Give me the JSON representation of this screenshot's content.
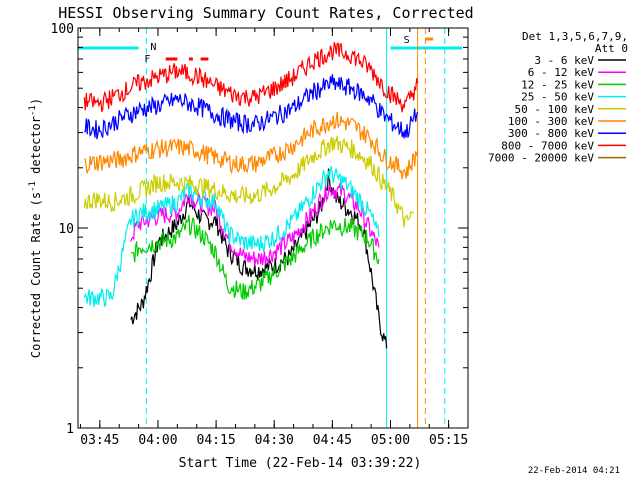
{
  "chart_data": {
    "type": "line",
    "title": "HESSI Observing Summary Count Rates, Corrected",
    "xlabel": "Start Time (22-Feb-14 03:39:22)",
    "ylabel": "Corrected Count Rate (s⁻¹ detector⁻¹)",
    "ylabel_parts": [
      "Corrected Count Rate (s",
      "-1",
      " detector",
      "-1",
      ")"
    ],
    "y_scale": "log",
    "ylim": [
      1,
      100
    ],
    "xlim": [
      "03:39:22",
      "05:20:00"
    ],
    "x_ticks": [
      "03:45",
      "04:00",
      "04:15",
      "04:30",
      "04:45",
      "05:00",
      "05:15"
    ],
    "y_ticks": [
      "1",
      "10",
      "100"
    ],
    "legend_title": [
      "Det 1,3,5,6,7,9,",
      "Att 0"
    ],
    "legend_position": "right",
    "timestamp": "22-Feb-2014 04:21",
    "flag_labels": {
      "night": "N",
      "flare": "F",
      "saa": "S"
    },
    "series": [
      {
        "name": "3 - 6 keV",
        "color": "#000000",
        "points": [
          [
            "03:53",
            3.5
          ],
          [
            "03:56",
            4.2
          ],
          [
            "03:58",
            5.8
          ],
          [
            "04:00",
            8.5
          ],
          [
            "04:05",
            10.5
          ],
          [
            "04:08",
            13.5
          ],
          [
            "04:10",
            12.0
          ],
          [
            "04:12",
            11.0
          ],
          [
            "04:15",
            10.8
          ],
          [
            "04:18",
            7.8
          ],
          [
            "04:22",
            6.4
          ],
          [
            "04:26",
            6.2
          ],
          [
            "04:30",
            6.5
          ],
          [
            "04:34",
            7.2
          ],
          [
            "04:38",
            9.5
          ],
          [
            "04:42",
            12.5
          ],
          [
            "04:44",
            18.0
          ],
          [
            "04:46",
            14.0
          ],
          [
            "04:50",
            12.0
          ],
          [
            "04:53",
            10.0
          ],
          [
            "04:55",
            6.0
          ],
          [
            "04:57",
            3.5
          ],
          [
            "04:59",
            2.5
          ]
        ]
      },
      {
        "name": "6 - 12 keV",
        "color": "#ff00ff",
        "points": [
          [
            "03:53",
            9.0
          ],
          [
            "03:55",
            10.5
          ],
          [
            "04:00",
            11.5
          ],
          [
            "04:05",
            12.0
          ],
          [
            "04:08",
            15.0
          ],
          [
            "04:10",
            13.5
          ],
          [
            "04:15",
            12.5
          ],
          [
            "04:18",
            8.8
          ],
          [
            "04:22",
            7.2
          ],
          [
            "04:26",
            7.0
          ],
          [
            "04:30",
            7.6
          ],
          [
            "04:35",
            9.0
          ],
          [
            "04:40",
            12.0
          ],
          [
            "04:44",
            16.0
          ],
          [
            "04:48",
            15.0
          ],
          [
            "04:52",
            12.5
          ],
          [
            "04:55",
            9.5
          ],
          [
            "04:57",
            8.0
          ]
        ]
      },
      {
        "name": "12 - 25 keV",
        "color": "#00cc00",
        "points": [
          [
            "03:53",
            7.0
          ],
          [
            "03:55",
            8.0
          ],
          [
            "04:00",
            8.5
          ],
          [
            "04:05",
            9.0
          ],
          [
            "04:08",
            10.5
          ],
          [
            "04:12",
            9.0
          ],
          [
            "04:15",
            7.5
          ],
          [
            "04:18",
            5.2
          ],
          [
            "04:22",
            4.8
          ],
          [
            "04:26",
            5.2
          ],
          [
            "04:30",
            6.0
          ],
          [
            "04:35",
            7.2
          ],
          [
            "04:40",
            9.0
          ],
          [
            "04:45",
            10.5
          ],
          [
            "04:50",
            10.0
          ],
          [
            "04:54",
            9.0
          ],
          [
            "04:57",
            7.0
          ]
        ]
      },
      {
        "name": "25 - 50 keV",
        "color": "#00eeee",
        "points": [
          [
            "03:41",
            4.5
          ],
          [
            "03:45",
            4.5
          ],
          [
            "03:48",
            4.5
          ],
          [
            "03:53",
            11.0
          ],
          [
            "03:56",
            12.0
          ],
          [
            "04:00",
            12.5
          ],
          [
            "04:05",
            13.5
          ],
          [
            "04:08",
            15.5
          ],
          [
            "04:10",
            14.5
          ],
          [
            "04:15",
            13.5
          ],
          [
            "04:18",
            9.5
          ],
          [
            "04:22",
            8.5
          ],
          [
            "04:26",
            8.3
          ],
          [
            "04:30",
            9.0
          ],
          [
            "04:35",
            11.0
          ],
          [
            "04:40",
            15.0
          ],
          [
            "04:44",
            19.0
          ],
          [
            "04:48",
            17.0
          ],
          [
            "04:52",
            14.0
          ],
          [
            "04:55",
            11.5
          ],
          [
            "04:57",
            9.0
          ]
        ]
      },
      {
        "name": "50 - 100 keV",
        "color": "#cccc00",
        "points": [
          [
            "03:41",
            13.5
          ],
          [
            "03:44",
            14.0
          ],
          [
            "03:48",
            13.5
          ],
          [
            "03:53",
            14.5
          ],
          [
            "04:00",
            17.0
          ],
          [
            "04:05",
            17.0
          ],
          [
            "04:10",
            16.5
          ],
          [
            "04:15",
            15.5
          ],
          [
            "04:20",
            14.5
          ],
          [
            "04:25",
            14.5
          ],
          [
            "04:30",
            16.0
          ],
          [
            "04:35",
            18.5
          ],
          [
            "04:40",
            23.0
          ],
          [
            "04:45",
            27.0
          ],
          [
            "04:50",
            25.0
          ],
          [
            "04:55",
            21.0
          ],
          [
            "04:58",
            17.0
          ],
          [
            "05:01",
            14.0
          ],
          [
            "05:04",
            10.5
          ],
          [
            "05:06",
            12.0
          ]
        ]
      },
      {
        "name": "100 - 300 keV",
        "color": "#ff8800",
        "points": [
          [
            "03:41",
            21.0
          ],
          [
            "03:45",
            21.5
          ],
          [
            "03:50",
            22.0
          ],
          [
            "03:55",
            24.0
          ],
          [
            "04:00",
            25.0
          ],
          [
            "04:05",
            25.5
          ],
          [
            "04:10",
            24.5
          ],
          [
            "04:15",
            22.5
          ],
          [
            "04:20",
            21.0
          ],
          [
            "04:25",
            21.0
          ],
          [
            "04:30",
            23.0
          ],
          [
            "04:35",
            26.0
          ],
          [
            "04:40",
            31.0
          ],
          [
            "04:45",
            35.0
          ],
          [
            "04:50",
            33.0
          ],
          [
            "04:55",
            28.0
          ],
          [
            "04:58",
            23.0
          ],
          [
            "05:01",
            21.0
          ],
          [
            "05:04",
            19.0
          ],
          [
            "05:07",
            24.0
          ]
        ]
      },
      {
        "name": "300 - 800 keV",
        "color": "#0000ff",
        "points": [
          [
            "03:41",
            32.0
          ],
          [
            "03:45",
            31.0
          ],
          [
            "03:50",
            35.0
          ],
          [
            "03:55",
            39.0
          ],
          [
            "04:00",
            41.0
          ],
          [
            "04:05",
            44.0
          ],
          [
            "04:10",
            41.0
          ],
          [
            "04:15",
            37.0
          ],
          [
            "04:20",
            34.0
          ],
          [
            "04:25",
            33.0
          ],
          [
            "04:30",
            36.0
          ],
          [
            "04:35",
            40.0
          ],
          [
            "04:40",
            48.0
          ],
          [
            "04:45",
            53.0
          ],
          [
            "04:50",
            50.0
          ],
          [
            "04:55",
            44.0
          ],
          [
            "04:58",
            37.0
          ],
          [
            "05:01",
            33.0
          ],
          [
            "05:04",
            30.0
          ],
          [
            "05:07",
            38.0
          ]
        ]
      },
      {
        "name": "800 - 7000 keV",
        "color": "#ff0000",
        "points": [
          [
            "03:41",
            43.0
          ],
          [
            "03:45",
            42.0
          ],
          [
            "03:50",
            47.0
          ],
          [
            "03:55",
            53.0
          ],
          [
            "04:00",
            57.0
          ],
          [
            "04:05",
            61.0
          ],
          [
            "04:10",
            58.0
          ],
          [
            "04:15",
            51.0
          ],
          [
            "04:20",
            46.0
          ],
          [
            "04:25",
            45.0
          ],
          [
            "04:30",
            50.0
          ],
          [
            "04:35",
            57.0
          ],
          [
            "04:40",
            69.0
          ],
          [
            "04:45",
            77.0
          ],
          [
            "04:50",
            74.0
          ],
          [
            "04:55",
            62.0
          ],
          [
            "04:58",
            52.0
          ],
          [
            "05:01",
            45.0
          ],
          [
            "05:04",
            41.0
          ],
          [
            "05:07",
            53.0
          ]
        ]
      },
      {
        "name": "7000 - 20000 keV",
        "color": "#996600",
        "points": []
      }
    ]
  }
}
